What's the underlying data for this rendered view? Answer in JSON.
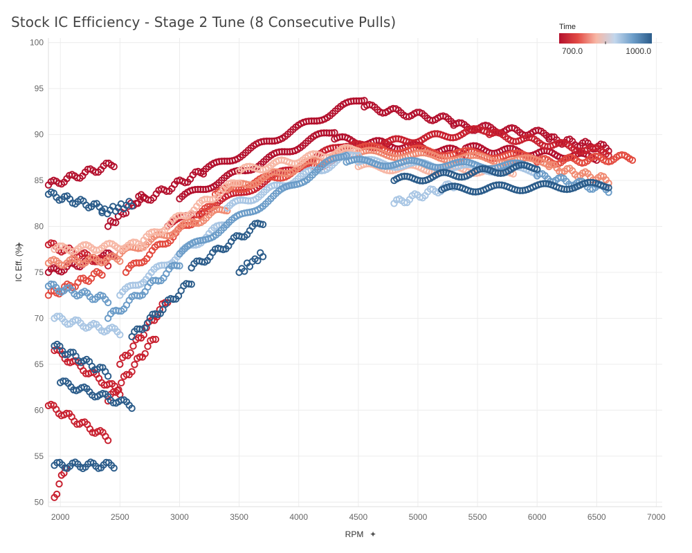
{
  "chart_data": {
    "type": "scatter",
    "title": "Stock IC Efficiency - Stage 2 Tune (8 Consecutive Pulls)",
    "xlabel": "RPM",
    "ylabel": "IC Eff. (%)",
    "xlim": [
      1900,
      7050
    ],
    "ylim": [
      49.5,
      100.5
    ],
    "xticks": [
      2000,
      2500,
      3000,
      3500,
      4000,
      4500,
      5000,
      5500,
      6000,
      6500,
      7000
    ],
    "yticks": [
      50,
      55,
      60,
      65,
      70,
      75,
      80,
      85,
      90,
      95,
      100
    ],
    "grid": true,
    "legend": {
      "title": "Time",
      "placement": "top-right",
      "min_label": "700.0",
      "max_label": "1000.0",
      "gradient": [
        "#b3102d",
        "#e24a44",
        "#f7b7a5",
        "#c2d6ec",
        "#6b9cc8",
        "#2b5c8a"
      ]
    },
    "series": [
      {
        "time": 720,
        "color": "#b3102d",
        "segments": [
          {
            "rpm": [
              1900,
              2450
            ],
            "eff": [
              84.5,
              86.8
            ]
          },
          {
            "rpm": [
              2650,
              3200
            ],
            "eff": [
              82.5,
              86.0
            ]
          },
          {
            "rpm": [
              3200,
              4550
            ],
            "eff": [
              86.0,
              94.0
            ]
          },
          {
            "rpm": [
              4550,
              5300
            ],
            "eff": [
              93.0,
              91.5
            ]
          },
          {
            "rpm": [
              5300,
              6100
            ],
            "eff": [
              91.0,
              90.0
            ]
          },
          {
            "rpm": [
              6100,
              6600
            ],
            "eff": [
              89.5,
              88.5
            ]
          }
        ]
      },
      {
        "time": 735,
        "color": "#b3102d",
        "segments": [
          {
            "rpm": [
              1900,
              2450
            ],
            "eff": [
              75.0,
              77.0
            ]
          },
          {
            "rpm": [
              2400,
              2700
            ],
            "eff": [
              80.0,
              83.5
            ]
          },
          {
            "rpm": [
              3000,
              4300
            ],
            "eff": [
              83.0,
              90.5
            ]
          },
          {
            "rpm": [
              4300,
              5400
            ],
            "eff": [
              89.5,
              88.0
            ]
          },
          {
            "rpm": [
              5400,
              6500
            ],
            "eff": [
              88.5,
              87.5
            ]
          }
        ]
      },
      {
        "time": 760,
        "color": "#c8202f",
        "segments": [
          {
            "rpm": [
              1900,
              2400
            ],
            "eff": [
              78.0,
              76.0
            ]
          },
          {
            "rpm": [
              2500,
              2900
            ],
            "eff": [
              65.0,
              72.0
            ]
          },
          {
            "rpm": [
              2900,
              4400
            ],
            "eff": [
              80.0,
              89.0
            ]
          },
          {
            "rpm": [
              4400,
              5600
            ],
            "eff": [
              88.5,
              90.5
            ]
          },
          {
            "rpm": [
              5600,
              6600
            ],
            "eff": [
              90.0,
              88.0
            ]
          }
        ]
      },
      {
        "time": 780,
        "color": "#c8202f",
        "segments": [
          {
            "rpm": [
              1900,
              2400
            ],
            "eff": [
              60.5,
              57.0
            ]
          },
          {
            "rpm": [
              1950,
              2500
            ],
            "eff": [
              66.5,
              62.0
            ]
          },
          {
            "rpm": [
              2400,
              2800
            ],
            "eff": [
              61.0,
              68.0
            ]
          },
          {
            "rpm": [
              1950,
              2050
            ],
            "eff": [
              50.5,
              54.0
            ]
          }
        ]
      },
      {
        "time": 820,
        "color": "#e34a3f",
        "segments": [
          {
            "rpm": [
              1900,
              2350
            ],
            "eff": [
              72.5,
              75.0
            ]
          },
          {
            "rpm": [
              2550,
              3300
            ],
            "eff": [
              75.0,
              82.5
            ]
          },
          {
            "rpm": [
              3300,
              4500
            ],
            "eff": [
              83.5,
              88.0
            ]
          },
          {
            "rpm": [
              4500,
              6000
            ],
            "eff": [
              88.5,
              87.5
            ]
          },
          {
            "rpm": [
              6000,
              6800
            ],
            "eff": [
              87.0,
              87.5
            ]
          }
        ]
      },
      {
        "time": 850,
        "color": "#f08a72",
        "segments": [
          {
            "rpm": [
              1900,
              2500
            ],
            "eff": [
              76.0,
              76.5
            ]
          },
          {
            "rpm": [
              2500,
              3400
            ],
            "eff": [
              77.0,
              82.0
            ]
          },
          {
            "rpm": [
              3400,
              4500
            ],
            "eff": [
              84.0,
              88.5
            ]
          },
          {
            "rpm": [
              4500,
              6100
            ],
            "eff": [
              88.0,
              87.0
            ]
          },
          {
            "rpm": [
              6100,
              6600
            ],
            "eff": [
              86.5,
              85.0
            ]
          }
        ]
      },
      {
        "time": 880,
        "color": "#f7b7a5",
        "segments": [
          {
            "rpm": [
              1950,
              2700
            ],
            "eff": [
              77.5,
              78.0
            ]
          },
          {
            "rpm": [
              2700,
              3500
            ],
            "eff": [
              78.5,
              85.0
            ]
          },
          {
            "rpm": [
              3500,
              4500
            ],
            "eff": [
              86.0,
              88.5
            ]
          },
          {
            "rpm": [
              4500,
              5800
            ],
            "eff": [
              86.5,
              86.0
            ]
          }
        ]
      },
      {
        "time": 920,
        "color": "#a9c6e4",
        "segments": [
          {
            "rpm": [
              1950,
              2500
            ],
            "eff": [
              70.0,
              68.5
            ]
          },
          {
            "rpm": [
              2500,
              3400
            ],
            "eff": [
              72.5,
              80.5
            ]
          },
          {
            "rpm": [
              3400,
              4500
            ],
            "eff": [
              82.0,
              88.0
            ]
          },
          {
            "rpm": [
              4500,
              6000
            ],
            "eff": [
              87.0,
              86.0
            ]
          },
          {
            "rpm": [
              4800,
              5300
            ],
            "eff": [
              82.5,
              84.5
            ]
          }
        ]
      },
      {
        "time": 950,
        "color": "#6b9cc8",
        "segments": [
          {
            "rpm": [
              1900,
              2400
            ],
            "eff": [
              73.5,
              72.0
            ]
          },
          {
            "rpm": [
              2400,
              3000
            ],
            "eff": [
              70.0,
              76.0
            ]
          },
          {
            "rpm": [
              3000,
              4400
            ],
            "eff": [
              77.0,
              88.0
            ]
          },
          {
            "rpm": [
              4400,
              6000
            ],
            "eff": [
              87.0,
              86.5
            ]
          },
          {
            "rpm": [
              6000,
              6600
            ],
            "eff": [
              85.5,
              84.0
            ]
          }
        ]
      },
      {
        "time": 990,
        "color": "#2b5c8a",
        "segments": [
          {
            "rpm": [
              1900,
              2350
            ],
            "eff": [
              83.5,
              82.0
            ]
          },
          {
            "rpm": [
              2350,
              2600
            ],
            "eff": [
              81.5,
              82.5
            ]
          },
          {
            "rpm": [
              1950,
              2400
            ],
            "eff": [
              67.0,
              64.0
            ]
          },
          {
            "rpm": [
              1950,
              2450
            ],
            "eff": [
              54.0,
              54.0
            ]
          },
          {
            "rpm": [
              2000,
              2600
            ],
            "eff": [
              63.0,
              60.5
            ]
          },
          {
            "rpm": [
              2600,
              3100
            ],
            "eff": [
              68.0,
              74.0
            ]
          },
          {
            "rpm": [
              3100,
              3700
            ],
            "eff": [
              75.5,
              80.5
            ]
          },
          {
            "rpm": [
              3500,
              3700
            ],
            "eff": [
              75.0,
              77.0
            ]
          },
          {
            "rpm": [
              4800,
              6000
            ],
            "eff": [
              85.0,
              86.5
            ]
          },
          {
            "rpm": [
              5200,
              6600
            ],
            "eff": [
              84.0,
              84.5
            ]
          }
        ]
      }
    ]
  }
}
